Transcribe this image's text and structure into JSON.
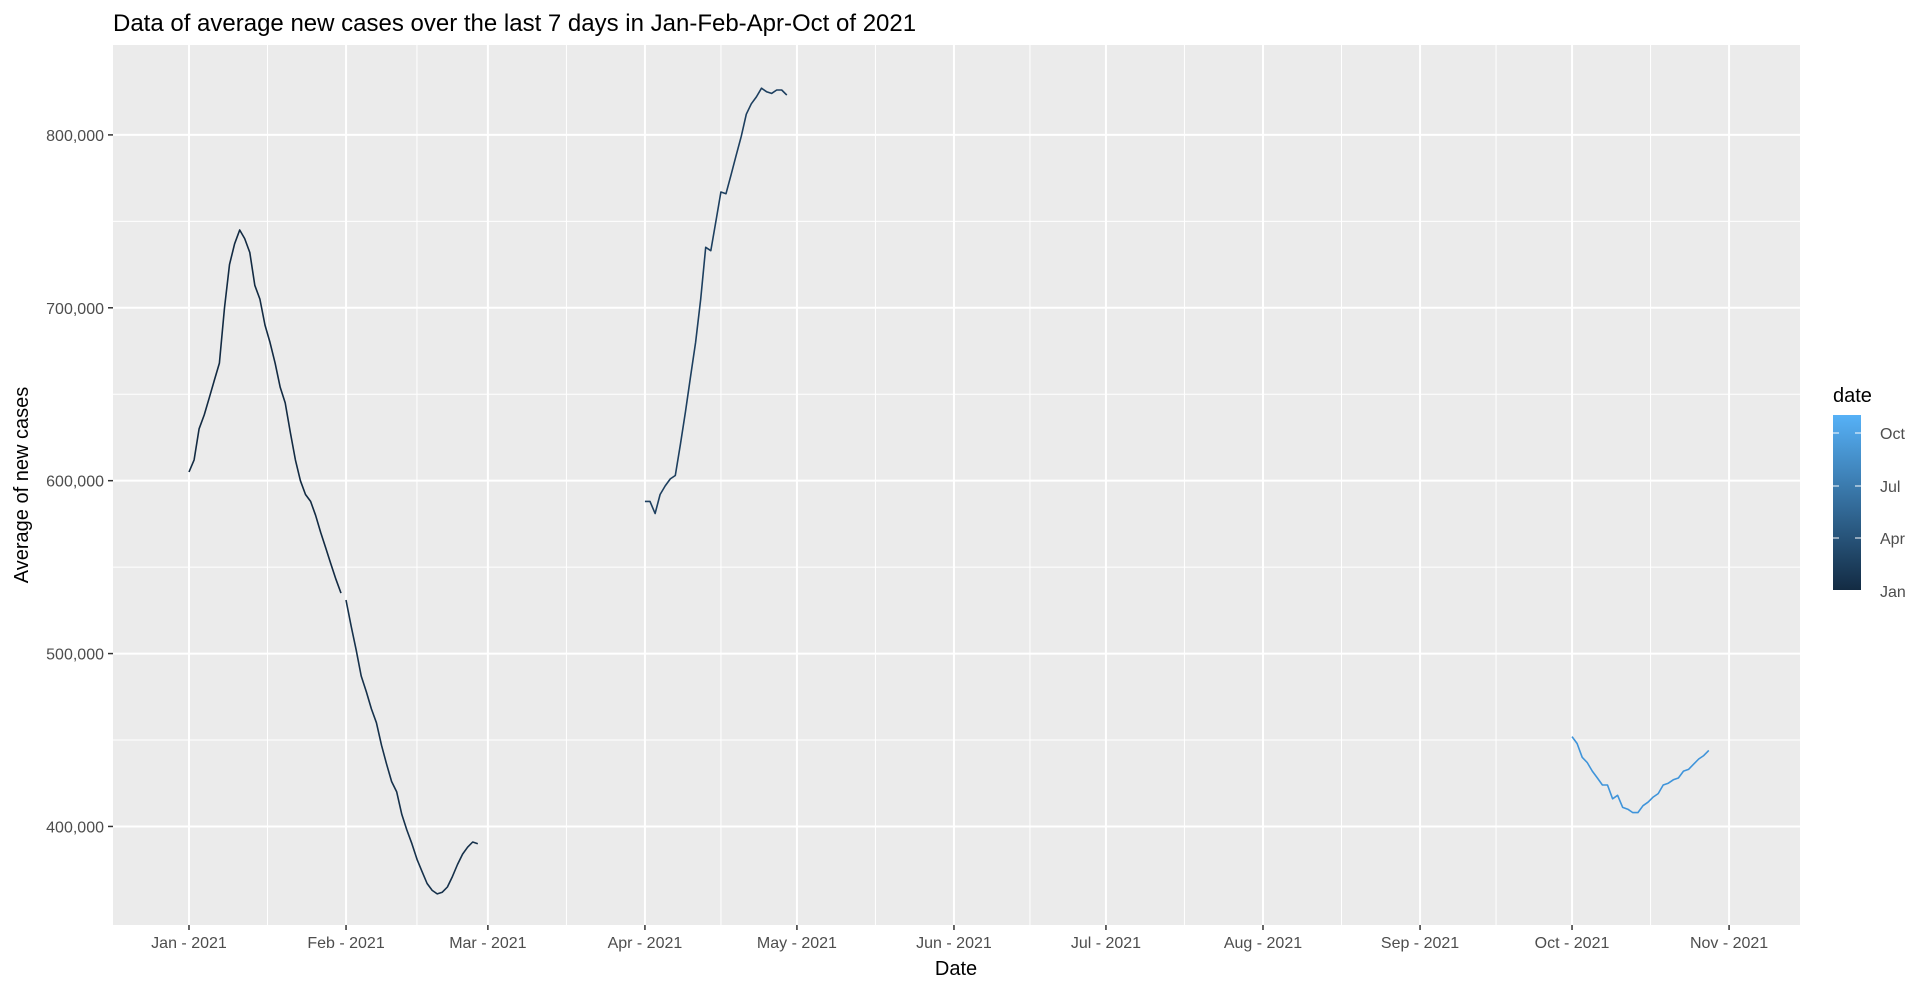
{
  "chart_data": {
    "type": "line",
    "title": "Data of average new cases over the last 7 days in Jan-Feb-Apr-Oct of 2021",
    "xlabel": "Date",
    "ylabel": "Average of new cases",
    "xlim": [
      "2020-12-17",
      "2021-11-15"
    ],
    "ylim": [
      343000,
      852000
    ],
    "x_ticks": [
      {
        "date": "2021-01-01",
        "label": "Jan - 2021"
      },
      {
        "date": "2021-02-01",
        "label": "Feb - 2021"
      },
      {
        "date": "2021-03-01",
        "label": "Mar - 2021"
      },
      {
        "date": "2021-04-01",
        "label": "Apr - 2021"
      },
      {
        "date": "2021-05-01",
        "label": "May - 2021"
      },
      {
        "date": "2021-06-01",
        "label": "Jun - 2021"
      },
      {
        "date": "2021-07-01",
        "label": "Jul - 2021"
      },
      {
        "date": "2021-08-01",
        "label": "Aug - 2021"
      },
      {
        "date": "2021-09-01",
        "label": "Sep - 2021"
      },
      {
        "date": "2021-10-01",
        "label": "Oct - 2021"
      },
      {
        "date": "2021-11-01",
        "label": "Nov - 2021"
      }
    ],
    "y_ticks": [
      {
        "value": 400000,
        "label": "400,000"
      },
      {
        "value": 500000,
        "label": "500,000"
      },
      {
        "value": 600000,
        "label": "600,000"
      },
      {
        "value": 700000,
        "label": "700,000"
      },
      {
        "value": 800000,
        "label": "800,000"
      }
    ],
    "grid": true,
    "background": "#ebebeb",
    "gridline_color": "#ffffff",
    "legend": {
      "title": "date",
      "position": "right",
      "type": "colorbar",
      "labels": [
        "Oct",
        "Jul",
        "Apr",
        "Jan"
      ],
      "low_color": "#132b43",
      "high_color": "#56b1f7"
    },
    "series": [
      {
        "month": "Jan",
        "color": "#132b43",
        "points": [
          [
            "2021-01-01",
            605000
          ],
          [
            "2021-01-02",
            612000
          ],
          [
            "2021-01-03",
            630000
          ],
          [
            "2021-01-04",
            638000
          ],
          [
            "2021-01-05",
            648000
          ],
          [
            "2021-01-06",
            658000
          ],
          [
            "2021-01-07",
            668000
          ],
          [
            "2021-01-08",
            700000
          ],
          [
            "2021-01-09",
            725000
          ],
          [
            "2021-01-10",
            737000
          ],
          [
            "2021-01-11",
            745000
          ],
          [
            "2021-01-12",
            740000
          ],
          [
            "2021-01-13",
            732000
          ],
          [
            "2021-01-14",
            713000
          ],
          [
            "2021-01-15",
            705000
          ],
          [
            "2021-01-16",
            690000
          ],
          [
            "2021-01-17",
            680000
          ],
          [
            "2021-01-18",
            668000
          ],
          [
            "2021-01-19",
            654000
          ],
          [
            "2021-01-20",
            645000
          ],
          [
            "2021-01-21",
            628000
          ],
          [
            "2021-01-22",
            612000
          ],
          [
            "2021-01-23",
            600000
          ],
          [
            "2021-01-24",
            592000
          ],
          [
            "2021-01-25",
            588000
          ],
          [
            "2021-01-26",
            580000
          ],
          [
            "2021-01-27",
            570000
          ],
          [
            "2021-01-28",
            561000
          ],
          [
            "2021-01-29",
            552000
          ],
          [
            "2021-01-30",
            543000
          ],
          [
            "2021-01-31",
            535000
          ]
        ]
      },
      {
        "month": "Feb",
        "color": "#16314b",
        "points": [
          [
            "2021-02-01",
            531000
          ],
          [
            "2021-02-02",
            516000
          ],
          [
            "2021-02-03",
            502000
          ],
          [
            "2021-02-04",
            487000
          ],
          [
            "2021-02-05",
            478000
          ],
          [
            "2021-02-06",
            468000
          ],
          [
            "2021-02-07",
            460000
          ],
          [
            "2021-02-08",
            447000
          ],
          [
            "2021-02-09",
            436000
          ],
          [
            "2021-02-10",
            426000
          ],
          [
            "2021-02-11",
            420000
          ],
          [
            "2021-02-12",
            407000
          ],
          [
            "2021-02-13",
            398000
          ],
          [
            "2021-02-14",
            390000
          ],
          [
            "2021-02-15",
            381000
          ],
          [
            "2021-02-16",
            374000
          ],
          [
            "2021-02-17",
            367000
          ],
          [
            "2021-02-18",
            363000
          ],
          [
            "2021-02-19",
            361000
          ],
          [
            "2021-02-20",
            362000
          ],
          [
            "2021-02-21",
            365000
          ],
          [
            "2021-02-22",
            371000
          ],
          [
            "2021-02-23",
            378000
          ],
          [
            "2021-02-24",
            384000
          ],
          [
            "2021-02-25",
            388000
          ],
          [
            "2021-02-26",
            391000
          ],
          [
            "2021-02-27",
            390000
          ]
        ]
      },
      {
        "month": "Apr",
        "color": "#1d3f5f",
        "points": [
          [
            "2021-04-01",
            588000
          ],
          [
            "2021-04-02",
            588000
          ],
          [
            "2021-04-03",
            581000
          ],
          [
            "2021-04-04",
            592000
          ],
          [
            "2021-04-05",
            597000
          ],
          [
            "2021-04-06",
            601000
          ],
          [
            "2021-04-07",
            603000
          ],
          [
            "2021-04-08",
            621000
          ],
          [
            "2021-04-09",
            640000
          ],
          [
            "2021-04-10",
            660000
          ],
          [
            "2021-04-11",
            680000
          ],
          [
            "2021-04-12",
            705000
          ],
          [
            "2021-04-13",
            735000
          ],
          [
            "2021-04-14",
            733000
          ],
          [
            "2021-04-15",
            750000
          ],
          [
            "2021-04-16",
            767000
          ],
          [
            "2021-04-17",
            766000
          ],
          [
            "2021-04-18",
            777000
          ],
          [
            "2021-04-19",
            788000
          ],
          [
            "2021-04-20",
            799000
          ],
          [
            "2021-04-21",
            812000
          ],
          [
            "2021-04-22",
            818000
          ],
          [
            "2021-04-23",
            822000
          ],
          [
            "2021-04-24",
            827000
          ],
          [
            "2021-04-25",
            825000
          ],
          [
            "2021-04-26",
            824000
          ],
          [
            "2021-04-27",
            826000
          ],
          [
            "2021-04-28",
            826000
          ],
          [
            "2021-04-29",
            823000
          ]
        ]
      },
      {
        "month": "Oct",
        "color": "#3f94da",
        "points": [
          [
            "2021-10-01",
            452000
          ],
          [
            "2021-10-02",
            448000
          ],
          [
            "2021-10-03",
            440000
          ],
          [
            "2021-10-04",
            437000
          ],
          [
            "2021-10-05",
            432000
          ],
          [
            "2021-10-06",
            428000
          ],
          [
            "2021-10-07",
            424000
          ],
          [
            "2021-10-08",
            424000
          ],
          [
            "2021-10-09",
            416000
          ],
          [
            "2021-10-10",
            418000
          ],
          [
            "2021-10-11",
            411000
          ],
          [
            "2021-10-12",
            410000
          ],
          [
            "2021-10-13",
            408000
          ],
          [
            "2021-10-14",
            408000
          ],
          [
            "2021-10-15",
            412000
          ],
          [
            "2021-10-16",
            414000
          ],
          [
            "2021-10-17",
            417000
          ],
          [
            "2021-10-18",
            419000
          ],
          [
            "2021-10-19",
            424000
          ],
          [
            "2021-10-20",
            425000
          ],
          [
            "2021-10-21",
            427000
          ],
          [
            "2021-10-22",
            428000
          ],
          [
            "2021-10-23",
            432000
          ],
          [
            "2021-10-24",
            433000
          ],
          [
            "2021-10-25",
            436000
          ],
          [
            "2021-10-26",
            439000
          ],
          [
            "2021-10-27",
            441000
          ],
          [
            "2021-10-28",
            444000
          ]
        ]
      }
    ]
  }
}
